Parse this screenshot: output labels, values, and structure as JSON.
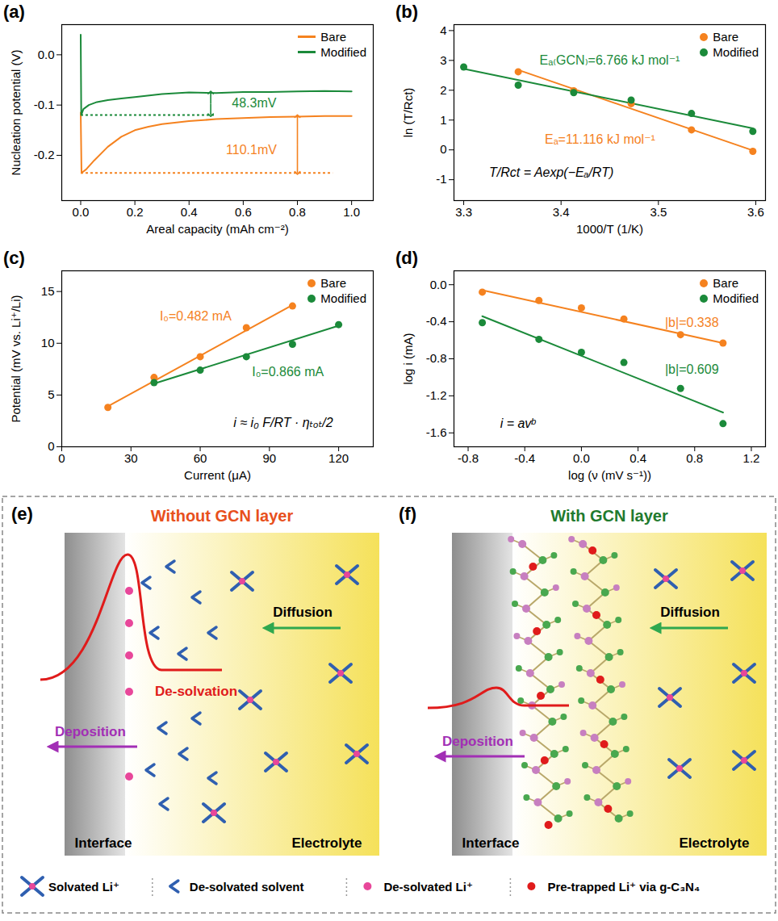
{
  "chart_data": [
    {
      "panel": "(a)",
      "type": "line",
      "x_label": "Areal capacity (mAh cm⁻²)",
      "y_label": "Nucleation potential (V)",
      "xlim": [
        -0.07,
        1.08
      ],
      "xticks": [
        {
          "value": 0,
          "label": "0.0"
        },
        0.2,
        0.4,
        0.6,
        0.8,
        {
          "value": 1,
          "label": "1.0"
        }
      ],
      "ylim": [
        -0.29,
        0.06
      ],
      "yticks": [
        -0.2,
        -0.1,
        {
          "value": 0,
          "label": "0.0"
        }
      ],
      "grid": false,
      "legend": "upper right",
      "series": [
        {
          "name": "Bare",
          "color": "#f5821f",
          "x": [
            0,
            0.003,
            0.02,
            0.05,
            0.1,
            0.15,
            0.2,
            0.25,
            0.3,
            0.4,
            0.5,
            0.6,
            0.7,
            0.8,
            0.9,
            1.0
          ],
          "values": [
            -0.115,
            -0.235,
            -0.228,
            -0.21,
            -0.183,
            -0.163,
            -0.15,
            -0.143,
            -0.138,
            -0.132,
            -0.128,
            -0.126,
            -0.124,
            -0.123,
            -0.122,
            -0.122
          ]
        },
        {
          "name": "Modified",
          "color": "#1b8a3a",
          "x": [
            0,
            0.002,
            0.01,
            0.03,
            0.06,
            0.1,
            0.15,
            0.2,
            0.3,
            0.4,
            0.5,
            0.6,
            0.7,
            0.8,
            0.9,
            1.0
          ],
          "values": [
            0.04,
            -0.12,
            -0.108,
            -0.1,
            -0.094,
            -0.09,
            -0.087,
            -0.084,
            -0.078,
            -0.075,
            -0.076,
            -0.074,
            -0.074,
            -0.073,
            -0.072,
            -0.073
          ]
        }
      ],
      "ref_lines": [
        {
          "y": -0.12,
          "x_from": 0,
          "x_to": 0.5,
          "color": "#1b8a3a"
        },
        {
          "y": -0.235,
          "x_from": 0,
          "x_to": 0.93,
          "color": "#f5821f"
        }
      ],
      "arrows": [
        {
          "x": 0.48,
          "y_from": -0.12,
          "y_to": -0.075,
          "color": "#1b8a3a"
        },
        {
          "x": 0.8,
          "y_from": -0.235,
          "y_to": -0.122,
          "color": "#f5821f"
        }
      ],
      "annotations": [
        {
          "text": "48.3mV",
          "x": 0.64,
          "y": -0.097,
          "color": "#1b8a3a"
        },
        {
          "text": "110.1mV",
          "x": 0.63,
          "y": -0.19,
          "color": "#f5821f"
        }
      ]
    },
    {
      "panel": "(b)",
      "type": "scatter",
      "x_label": "1000/T (1/K)",
      "y_label": "ln (T/Rct)",
      "xlim": [
        3.29,
        3.61
      ],
      "xticks": [
        3.3,
        3.4,
        3.5,
        3.6
      ],
      "ylim": [
        -1.7,
        4.2
      ],
      "yticks": [
        -1,
        0,
        1,
        2,
        3,
        4
      ],
      "grid": false,
      "legend": "upper right",
      "series": [
        {
          "name": "Bare",
          "color": "#f5821f",
          "marker": "circle",
          "x": [
            3.356,
            3.413,
            3.472,
            3.534,
            3.597
          ],
          "values": [
            2.62,
            1.98,
            1.55,
            0.67,
            -0.05
          ],
          "fit": {
            "x": [
              3.356,
              3.597
            ],
            "values": [
              2.68,
              -0.02
            ]
          }
        },
        {
          "name": "Modified",
          "color": "#1b8a3a",
          "marker": "circle",
          "x": [
            3.3,
            3.356,
            3.413,
            3.472,
            3.534,
            3.597
          ],
          "values": [
            2.78,
            2.17,
            1.92,
            1.67,
            1.22,
            0.62
          ],
          "fit": {
            "x": [
              3.3,
              3.597
            ],
            "values": [
              2.72,
              0.72
            ]
          }
        }
      ],
      "annotations": [
        {
          "text": "Eₐ₍GCN₎=6.766 kJ mol⁻¹",
          "x": 3.45,
          "y": 3.0,
          "color": "#1b8a3a"
        },
        {
          "text": "Eₐ=11.116 kJ mol⁻¹",
          "x": 3.44,
          "y": 0.35,
          "color": "#f5821f"
        }
      ],
      "formula": {
        "text": "T/Rct = Aexp(−Eₐ/RT)",
        "x": 3.39,
        "y": -0.75
      }
    },
    {
      "panel": "(c)",
      "type": "scatter",
      "x_label": "Current (μA)",
      "y_label": "Potential (mV vs. Li⁺/Li)",
      "xlim": [
        0,
        135
      ],
      "xticks": [
        0,
        30,
        60,
        90,
        120
      ],
      "ylim": [
        0,
        17
      ],
      "yticks": [
        0,
        5,
        10,
        15
      ],
      "grid": false,
      "legend": "upper right",
      "series": [
        {
          "name": "Bare",
          "color": "#f5821f",
          "marker": "circle",
          "x": [
            20,
            40,
            60,
            80,
            100
          ],
          "values": [
            3.8,
            6.7,
            8.7,
            11.5,
            13.6
          ],
          "fit": {
            "x": [
              20,
              100
            ],
            "values": [
              3.9,
              13.7
            ]
          }
        },
        {
          "name": "Modified",
          "color": "#1b8a3a",
          "marker": "circle",
          "x": [
            40,
            60,
            80,
            100,
            120
          ],
          "values": [
            6.2,
            7.4,
            8.7,
            9.9,
            11.8
          ],
          "fit": {
            "x": [
              40,
              120
            ],
            "values": [
              6.1,
              11.7
            ]
          }
        }
      ],
      "annotations": [
        {
          "text": "I₀=0.482 mA",
          "x": 58,
          "y": 12.6,
          "color": "#f5821f"
        },
        {
          "text": "I₀=0.866 mA",
          "x": 98,
          "y": 7.2,
          "color": "#1b8a3a"
        }
      ],
      "formula": {
        "text": "i ≈ i₀ F/RT · ηₜₒₜ/2",
        "x": 96,
        "y": 2.3
      }
    },
    {
      "panel": "(d)",
      "type": "scatter",
      "x_label": "log (ν (mV s⁻¹))",
      "y_label": "log i (mA)",
      "xlim": [
        -0.9,
        1.3
      ],
      "xticks": [
        -0.8,
        -0.4,
        {
          "value": 0,
          "label": "0.0"
        },
        0.4,
        0.8,
        1.2
      ],
      "ylim": [
        -1.75,
        0.15
      ],
      "yticks": [
        -1.6,
        -1.2,
        -0.8,
        -0.4,
        {
          "value": 0,
          "label": "0.0"
        }
      ],
      "grid": false,
      "legend": "upper right",
      "series": [
        {
          "name": "Bare",
          "color": "#f5821f",
          "marker": "circle",
          "x": [
            -0.7,
            -0.3,
            0,
            0.3,
            0.7,
            1.0
          ],
          "values": [
            -0.08,
            -0.17,
            -0.25,
            -0.37,
            -0.54,
            -0.63
          ],
          "fit": {
            "x": [
              -0.7,
              1.0
            ],
            "values": [
              -0.06,
              -0.63
            ]
          }
        },
        {
          "name": "Modified",
          "color": "#1b8a3a",
          "marker": "circle",
          "x": [
            -0.7,
            -0.3,
            0,
            0.3,
            0.7,
            1.0
          ],
          "values": [
            -0.41,
            -0.59,
            -0.73,
            -0.84,
            -1.12,
            -1.5
          ],
          "fit": {
            "x": [
              -0.7,
              1.0
            ],
            "values": [
              -0.34,
              -1.38
            ]
          }
        }
      ],
      "annotations": [
        {
          "text": "|b|=0.338",
          "x": 0.78,
          "y": -0.41,
          "color": "#f5821f"
        },
        {
          "text": "|b|=0.609",
          "x": 0.78,
          "y": -0.92,
          "color": "#1b8a3a"
        }
      ],
      "formula": {
        "text": "i = avᵇ",
        "x": -0.45,
        "y": -1.5
      }
    }
  ],
  "diagrams": [
    {
      "panel": "(e)",
      "title": "Without GCN layer",
      "color": "#e8501c",
      "diffusion": "Diffusion",
      "desolvation": "De-solvation",
      "deposition": "Deposition",
      "interface": "Interface",
      "electrolyte": "Electrolyte"
    },
    {
      "panel": "(f)",
      "title": "With GCN layer",
      "color": "#1f7a2e",
      "diffusion": "Diffusion",
      "deposition": "Deposition",
      "interface": "Interface",
      "electrolyte": "Electrolyte"
    }
  ],
  "diagram_legend": [
    "Solvated Li⁺",
    "De-solvated solvent",
    "De-solvated Li⁺",
    "Pre-trapped Li⁺ via g-C₃N₄"
  ]
}
